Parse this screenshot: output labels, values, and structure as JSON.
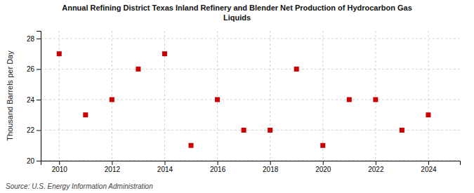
{
  "chart_data": {
    "type": "scatter",
    "title": "Annual Refining District Texas Inland Refinery and Blender Net Production of Hydrocarbon Gas\nLiquids",
    "ylabel": "Thousand Barrels per Day",
    "source": "Source: U.S. Energy Information Administration",
    "x": [
      2010,
      2011,
      2012,
      2013,
      2014,
      2015,
      2016,
      2017,
      2018,
      2019,
      2020,
      2021,
      2022,
      2023,
      2024
    ],
    "values": [
      27.0,
      23.0,
      24.0,
      26.0,
      27.0,
      21.0,
      24.0,
      22.0,
      22.0,
      26.0,
      21.0,
      24.0,
      24.0,
      22.0,
      23.0
    ],
    "color": "#cc0000",
    "marker": "square",
    "xlim": [
      2009.3,
      2025.2
    ],
    "ylim": [
      20,
      28.5
    ],
    "xticks": [
      2010,
      2012,
      2014,
      2016,
      2018,
      2020,
      2022,
      2024
    ],
    "yticks": [
      20,
      22,
      24,
      26,
      28
    ],
    "grid": true
  }
}
